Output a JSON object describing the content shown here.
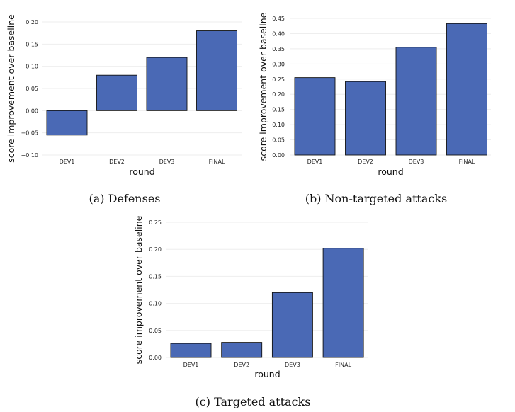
{
  "chart_data": [
    {
      "type": "bar",
      "categories": [
        "DEV1",
        "DEV2",
        "DEV3",
        "FINAL"
      ],
      "values": [
        -0.055,
        0.08,
        0.12,
        0.18
      ],
      "xlabel": "round",
      "ylabel": "score improvement over baseline",
      "ylim": [
        -0.1,
        0.2
      ],
      "yticks": [
        -0.1,
        -0.05,
        0.0,
        0.05,
        0.1,
        0.15,
        0.2
      ],
      "ytick_labels": [
        "−0.10",
        "−0.05",
        "0.00",
        "0.05",
        "0.10",
        "0.15",
        "0.20"
      ],
      "caption": "(a) Defenses",
      "color": "#4a69b5"
    },
    {
      "type": "bar",
      "categories": [
        "DEV1",
        "DEV2",
        "DEV3",
        "FINAL"
      ],
      "values": [
        0.255,
        0.242,
        0.355,
        0.433
      ],
      "xlabel": "round",
      "ylabel": "score improvement over baseline",
      "ylim": [
        0.0,
        0.45
      ],
      "yticks": [
        0.0,
        0.05,
        0.1,
        0.15,
        0.2,
        0.25,
        0.3,
        0.35,
        0.4,
        0.45
      ],
      "ytick_labels": [
        "0.00",
        "0.05",
        "0.10",
        "0.15",
        "0.20",
        "0.25",
        "0.30",
        "0.35",
        "0.40",
        "0.45"
      ],
      "caption": "(b) Non-targeted attacks",
      "color": "#4a69b5"
    },
    {
      "type": "bar",
      "categories": [
        "DEV1",
        "DEV2",
        "DEV3",
        "FINAL"
      ],
      "values": [
        0.026,
        0.028,
        0.12,
        0.202
      ],
      "xlabel": "round",
      "ylabel": "score improvement over baseline",
      "ylim": [
        0.0,
        0.25
      ],
      "yticks": [
        0.0,
        0.05,
        0.1,
        0.15,
        0.2,
        0.25
      ],
      "ytick_labels": [
        "0.00",
        "0.05",
        "0.10",
        "0.15",
        "0.20",
        "0.25"
      ],
      "caption": "(c) Targeted attacks",
      "color": "#4a69b5"
    }
  ]
}
